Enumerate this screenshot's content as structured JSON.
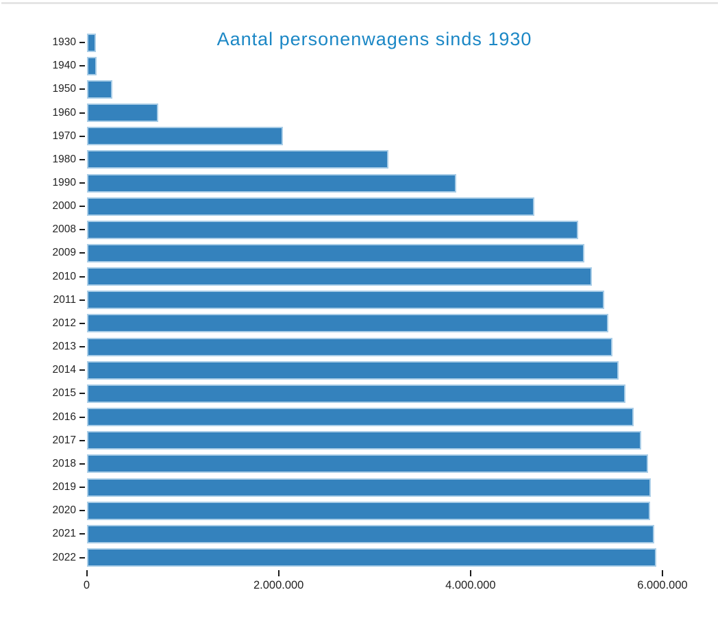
{
  "page": {
    "top_divider_color": "#e5e5e5",
    "background_color": "#ffffff"
  },
  "chart_data": {
    "type": "bar",
    "orientation": "horizontal",
    "title": "Aantal personenwagens sinds 1930",
    "categories": [
      "1930",
      "1940",
      "1950",
      "1960",
      "1970",
      "1980",
      "1990",
      "2000",
      "2008",
      "2009",
      "2010",
      "2011",
      "2012",
      "2013",
      "2014",
      "2015",
      "2016",
      "2017",
      "2018",
      "2019",
      "2020",
      "2021",
      "2022"
    ],
    "values": [
      95000,
      105000,
      265000,
      745000,
      2040000,
      3140000,
      3845000,
      4660000,
      5115000,
      5180000,
      5260000,
      5390000,
      5430000,
      5475000,
      5540000,
      5610000,
      5695000,
      5775000,
      5840000,
      5870000,
      5865000,
      5910000,
      5930000
    ],
    "xlim": [
      0,
      6000000
    ],
    "x_tick_values": [
      0,
      2000000,
      4000000,
      6000000
    ],
    "x_tick_labels": [
      "0",
      "2.000.000",
      "4.000.000",
      "6.000.000"
    ],
    "grid": false,
    "legend": "none",
    "number_format": "dutch-dot-separated",
    "colors": {
      "bar_fill": "#3482bd",
      "bar_border": "#a9cde7",
      "title": "#1b87c5",
      "tick": "#1a1a1a",
      "tick_label": "#222222"
    }
  }
}
